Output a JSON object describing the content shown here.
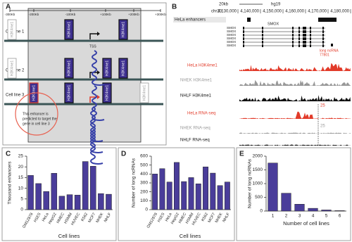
{
  "panel_a": {
    "label": "A",
    "positions": [
      "-300Kb",
      "-200Kb",
      "-100Kb",
      "+100Kb",
      "+200Kb",
      "+300Kb"
    ],
    "cell_lines": [
      "Cell line 1",
      "Cell line 2",
      "Cell line 3"
    ],
    "mark": "H3K4me1",
    "tss": "TSS",
    "note": [
      "This enhancer is",
      "predicted to target the",
      "gene in cell line 3"
    ]
  },
  "panel_b": {
    "label": "B",
    "scale": "20kb",
    "assembly": "hg19",
    "chrom": "chr20:",
    "coords": [
      "4,130,000",
      "4,140,000",
      "4,150,000",
      "4,160,000",
      "4,170,000",
      "4,180,000"
    ],
    "enhancers": "HeLa enhancers",
    "gene": "SMOX",
    "lncrna": [
      "long ncRNA",
      "77801"
    ],
    "tracks": [
      "HeLa H3K4me1",
      "NHEK H3K4me1",
      "NHLF H3K4me1",
      "HeLa RNA-seq",
      "NHEK RNA-seq",
      "NHLF RNA-seq"
    ],
    "track_scales": [
      "25",
      "25"
    ]
  },
  "chart_data": [
    {
      "type": "bar",
      "panel": "C",
      "ylabel": "Thousand enhancers",
      "xlabel": "Cell lines",
      "categories": [
        "GM12878",
        "H1ES",
        "HeLa",
        "HepG2",
        "HMEC",
        "HSMM",
        "HUVEC",
        "K562",
        "MCF7",
        "NHEK",
        "NHLF"
      ],
      "values": [
        16,
        12.2,
        8.5,
        17,
        6.3,
        7,
        6.8,
        22.5,
        20.3,
        7.5,
        7.2
      ],
      "ylim": [
        0,
        25
      ],
      "yticks": [
        0,
        5,
        10,
        15,
        20,
        25
      ],
      "color": "#4a3d9a"
    },
    {
      "type": "bar",
      "panel": "D",
      "ylabel": "Number of long ncRNAs",
      "xlabel": "Cell lines",
      "categories": [
        "GM12878",
        "H1ES",
        "HeLa",
        "HepG2",
        "HMEC",
        "HSMM",
        "HUVEC",
        "K562",
        "MCF7",
        "NHEK",
        "NHLF"
      ],
      "values": [
        400,
        460,
        310,
        530,
        315,
        360,
        290,
        480,
        410,
        270,
        310
      ],
      "ylim": [
        0,
        600
      ],
      "yticks": [
        0,
        100,
        200,
        300,
        400,
        500,
        600
      ],
      "color": "#4a3d9a"
    },
    {
      "type": "bar",
      "panel": "E",
      "ylabel": "Number of long ncRNAs",
      "xlabel": "Number of cell lines",
      "categories": [
        "1",
        "2",
        "3",
        "4",
        "5",
        "6"
      ],
      "values": [
        1750,
        650,
        250,
        100,
        40,
        15
      ],
      "ylim": [
        0,
        2000
      ],
      "yticks": [
        0,
        500,
        1000,
        1500,
        2000
      ],
      "color": "#4a3d9a"
    }
  ]
}
